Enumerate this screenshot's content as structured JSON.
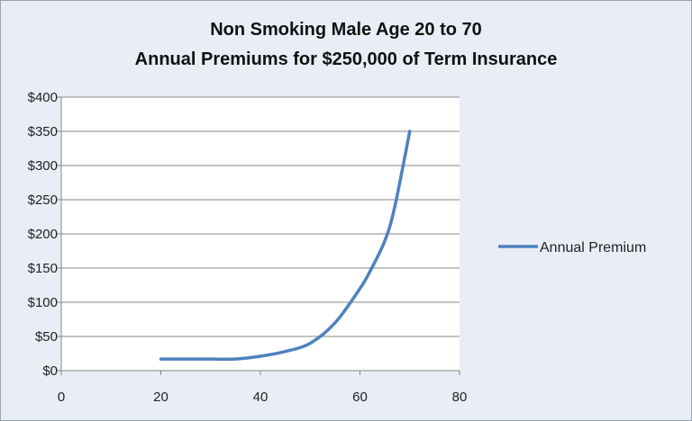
{
  "colors": {
    "series": "#4f81bd",
    "grid": "#868686",
    "plot_bg": "#ffffff",
    "chart_bg": "#e9eef6"
  },
  "chart_data": {
    "type": "line",
    "title": "Non Smoking Male Age 20 to 70",
    "subtitle": "Annual Premiums for $250,000 of Term Insurance",
    "xlabel": "",
    "ylabel": "",
    "xlim": [
      0,
      80
    ],
    "ylim": [
      0,
      400
    ],
    "x_ticks": [
      "0",
      "20",
      "40",
      "60",
      "80"
    ],
    "y_ticks": [
      "$0",
      "$50",
      "$100",
      "$150",
      "$200",
      "$250",
      "$300",
      "$350",
      "$400"
    ],
    "grid": "horizontal",
    "legend_position": "right",
    "series": [
      {
        "name": "Annual Premium",
        "x": [
          20,
          25,
          30,
          35,
          40,
          45,
          50,
          55,
          60,
          62,
          65,
          67,
          70
        ],
        "y": [
          17,
          17,
          17,
          17,
          21,
          28,
          40,
          70,
          120,
          145,
          190,
          240,
          350
        ]
      }
    ]
  }
}
